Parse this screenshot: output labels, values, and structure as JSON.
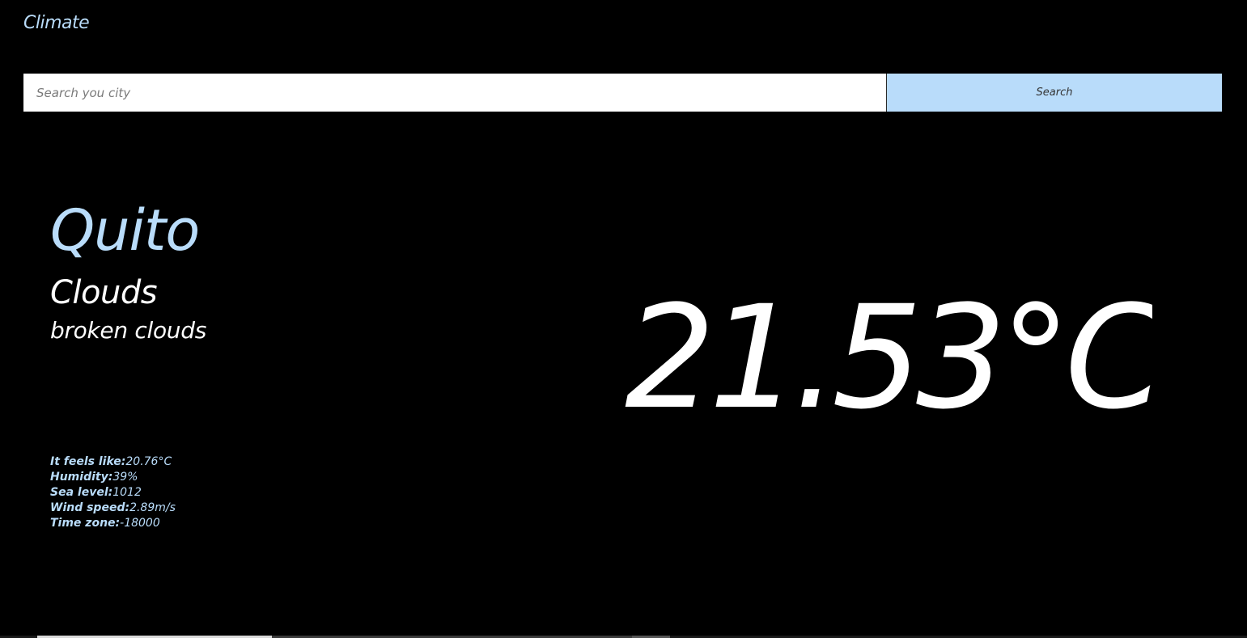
{
  "header": {
    "brand": "Climate"
  },
  "search": {
    "placeholder": "Search you city",
    "value": "",
    "button_label": "Search"
  },
  "weather": {
    "city": "Quito",
    "condition": "Clouds",
    "description": "broken clouds",
    "temperature": "21.53°C"
  },
  "details": [
    {
      "label": "It feels like:",
      "value": "20.76°C"
    },
    {
      "label": "Humidity:",
      "value": "39%"
    },
    {
      "label": "Sea level:",
      "value": "1012"
    },
    {
      "label": "Wind speed:",
      "value": "2.89m/s"
    },
    {
      "label": "Time zone:",
      "value": "-18000"
    }
  ],
  "colors": {
    "background": "#000000",
    "accent": "#b9dcfa",
    "text": "#ffffff"
  }
}
